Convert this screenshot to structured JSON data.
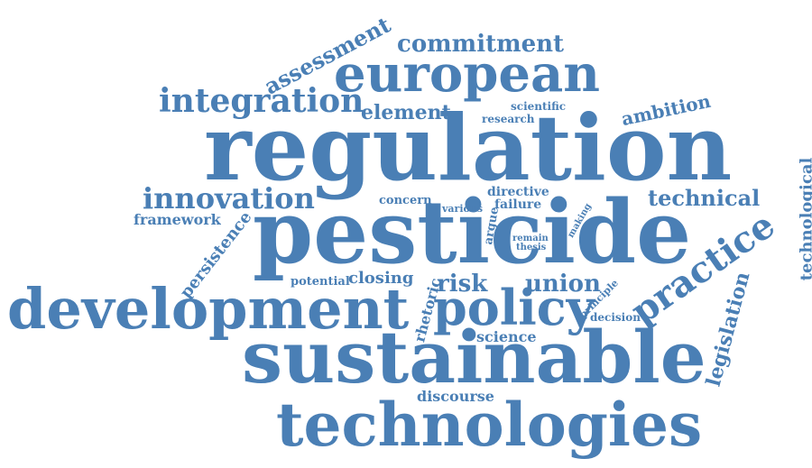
{
  "color": "#4a7fb5",
  "words": {
    "regulation": "regulation",
    "pesticide": "pesticide",
    "sustainable": "sustainable",
    "technologies": "technologies",
    "development": "development",
    "european": "european",
    "policy": "policy",
    "practice": "practice",
    "integration": "integration",
    "innovation": "innovation",
    "commitment": "commitment",
    "assessment": "assessment",
    "element": "element",
    "technical": "technical",
    "ambition": "ambition",
    "legislation": "legislation",
    "technological": "technological",
    "framework": "framework",
    "persistence": "persistence",
    "risk": "risk",
    "union": "union",
    "science": "science",
    "discourse": "discourse",
    "rhetoric": "rhetoric",
    "closing": "closing",
    "potential": "potential",
    "concern": "concern",
    "various": "various",
    "directive": "directive",
    "failure": "failure",
    "argue": "argue",
    "remain": "remain",
    "thesis": "thesis",
    "making": "making",
    "scientific": "scientific",
    "research": "research",
    "principle": "principle",
    "decision": "decision"
  }
}
